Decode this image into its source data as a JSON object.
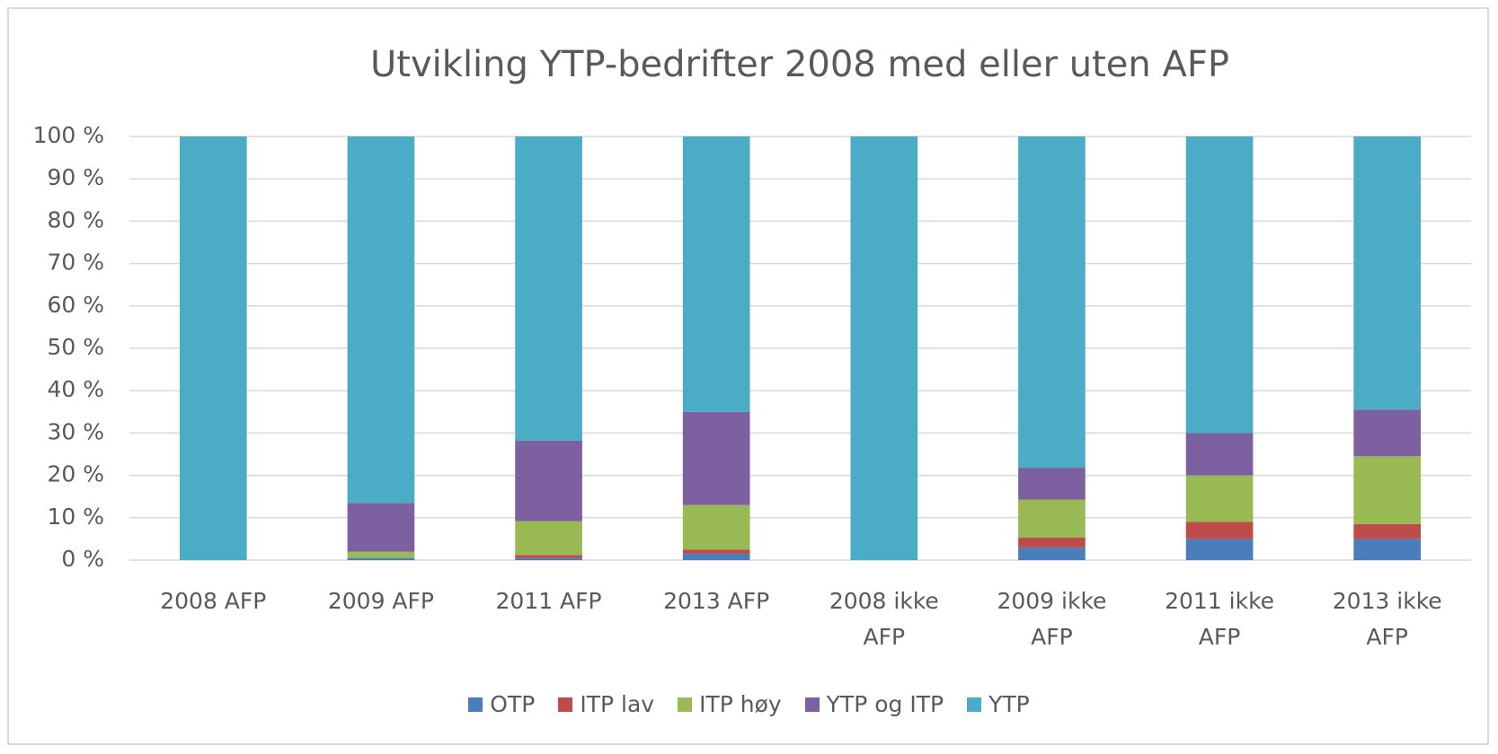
{
  "chart_data": {
    "type": "stacked_bar",
    "title": "Utvikling YTP-bedrifter 2008 med eller uten AFP",
    "categories": [
      "2008 AFP",
      "2009 AFP",
      "2011 AFP",
      "2013 AFP",
      "2008 ikke AFP",
      "2009 ikke AFP",
      "2011 ikke AFP",
      "2013 ikke AFP"
    ],
    "series": [
      {
        "name": "OTP",
        "color": "#4a7ebb",
        "values": [
          0,
          0.5,
          0.5,
          1.5,
          0,
          3,
          5,
          5
        ]
      },
      {
        "name": "ITP lav",
        "color": "#be4b48",
        "values": [
          0,
          0,
          0.7,
          1,
          0,
          2.3,
          4,
          3.5
        ]
      },
      {
        "name": "ITP høy",
        "color": "#98b954",
        "values": [
          0,
          1.5,
          8,
          10.5,
          0,
          9,
          11,
          16
        ]
      },
      {
        "name": "YTP og ITP",
        "color": "#7d60a0",
        "values": [
          0,
          11.5,
          19,
          22,
          0,
          7.5,
          10,
          11
        ]
      },
      {
        "name": "YTP",
        "color": "#4bacc6",
        "values": [
          100,
          86.5,
          71.8,
          65,
          100,
          78.2,
          70,
          64.5
        ]
      }
    ],
    "ylim": [
      0,
      100
    ],
    "yticks": [
      {
        "value": 0,
        "label": "0 %"
      },
      {
        "value": 10,
        "label": "10 %"
      },
      {
        "value": 20,
        "label": "20 %"
      },
      {
        "value": 30,
        "label": "30 %"
      },
      {
        "value": 40,
        "label": "40 %"
      },
      {
        "value": 50,
        "label": "50 %"
      },
      {
        "value": 60,
        "label": "60 %"
      },
      {
        "value": 70,
        "label": "70 %"
      },
      {
        "value": 80,
        "label": "80 %"
      },
      {
        "value": 90,
        "label": "90 %"
      },
      {
        "value": 100,
        "label": "100 %"
      }
    ],
    "grid": true,
    "legend": "bottom"
  }
}
